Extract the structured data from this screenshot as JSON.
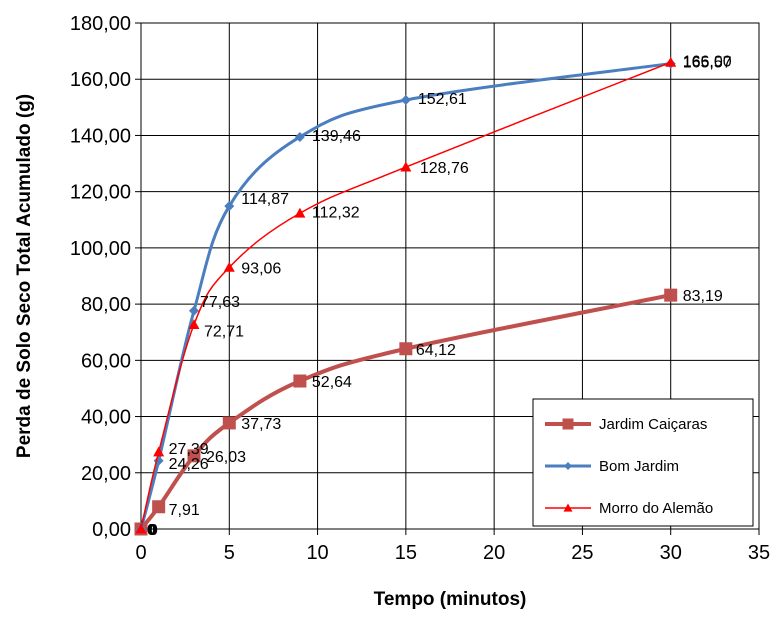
{
  "chart_data": {
    "type": "line",
    "xlabel": "Tempo (minutos)",
    "ylabel": "Perda de Solo Seco Total Acumulado (g)",
    "xlim": [
      0,
      35
    ],
    "ylim": [
      0,
      180
    ],
    "x_ticks": [
      "0",
      "5",
      "10",
      "15",
      "20",
      "25",
      "30",
      "35"
    ],
    "y_ticks": [
      "0,00",
      "20,00",
      "40,00",
      "60,00",
      "80,00",
      "100,00",
      "120,00",
      "140,00",
      "160,00",
      "180,00"
    ],
    "grid": true,
    "legend_position": "bottom-right",
    "series": [
      {
        "name": "Jardim Caiçaras",
        "color": "#c0504d",
        "marker": "square",
        "x": [
          0,
          1,
          3,
          5,
          9,
          15,
          30
        ],
        "y": [
          0,
          7.91,
          26.03,
          37.73,
          52.64,
          64.12,
          83.19
        ],
        "labels": [
          "0",
          "7,91",
          "26,03",
          "37,73",
          "52,64",
          "64,12",
          "83,19"
        ]
      },
      {
        "name": "Bom Jardim",
        "color": "#4a7ebf",
        "marker": "diamond",
        "x": [
          0,
          1,
          3,
          5,
          9,
          15,
          30
        ],
        "y": [
          0,
          24.26,
          77.63,
          114.87,
          139.46,
          152.61,
          165.57
        ],
        "labels": [
          "0",
          "24,26",
          "77,63",
          "114,87",
          "139,46",
          "152,61",
          "165,57"
        ]
      },
      {
        "name": "Morro do Alemão",
        "color": "#ff0000",
        "marker": "triangle",
        "x": [
          0,
          1,
          3,
          5,
          9,
          15,
          30
        ],
        "y": [
          0,
          27.39,
          72.71,
          93.06,
          112.32,
          128.76,
          166.0
        ],
        "labels": [
          "0",
          "27,39",
          "72,71",
          "93,06",
          "112,32",
          "128,76",
          "166,00"
        ]
      }
    ]
  }
}
